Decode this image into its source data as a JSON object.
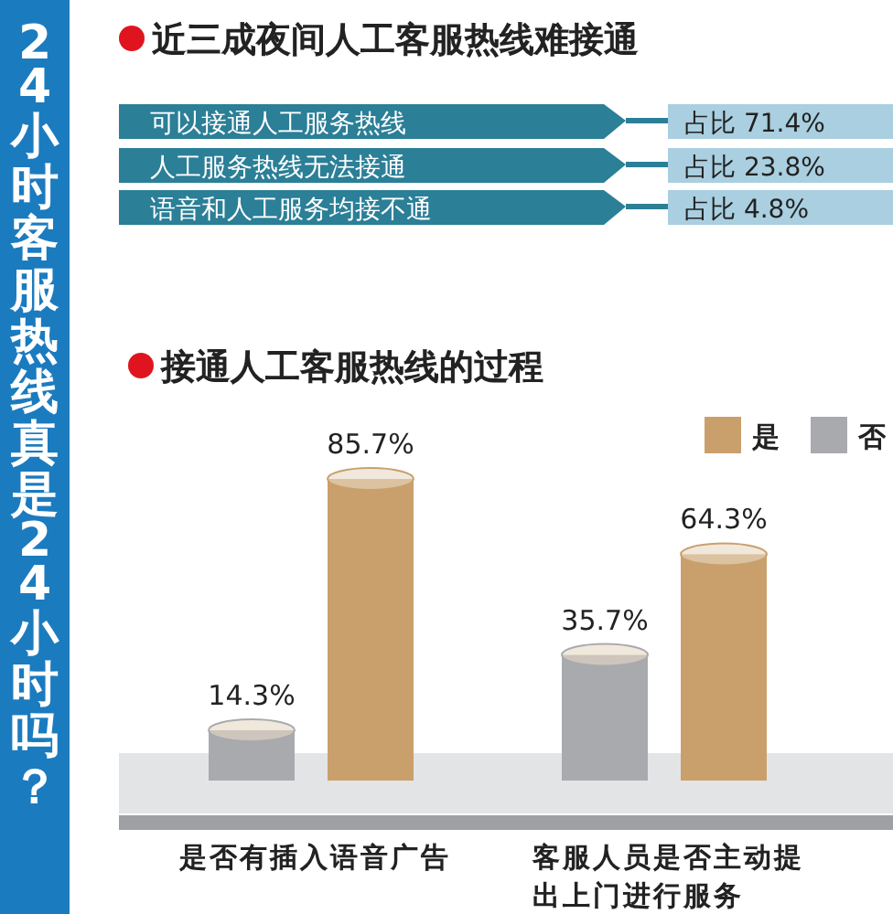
{
  "chart_data": [
    {
      "type": "other",
      "title": "24小时客服热线真是24小时吗？"
    },
    {
      "type": "other",
      "title": "近三成夜间人工客服热线难接通",
      "categories": [
        "可以接通人工服务热线",
        "人工服务热线无法接通",
        "语音和人工服务均接不通"
      ],
      "value_labels": [
        "占比 71.4%",
        "占比 23.8%",
        "占比 4.8%"
      ],
      "color": "#2b7f97"
    },
    {
      "type": "bar",
      "title": "接通人工客服热线的过程",
      "categories": [
        "是否有插入语音广告",
        "客服人员是否主动提出上门进行服务"
      ],
      "series": [
        {
          "name": "否",
          "color": "#a9aaae",
          "values": [
            14.3,
            35.7
          ],
          "value_labels": [
            "14.3%",
            "35.7%"
          ]
        },
        {
          "name": "是",
          "color": "#c9a06c",
          "values": [
            85.7,
            64.3
          ],
          "value_labels": [
            "85.7%",
            "64.3%"
          ]
        }
      ],
      "legend": "top right"
    }
  ]
}
